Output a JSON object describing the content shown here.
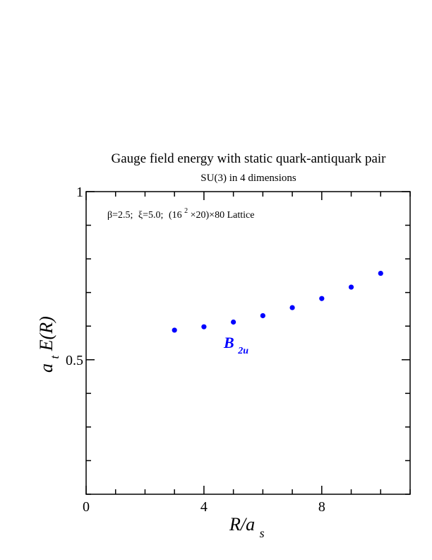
{
  "chart_data": {
    "type": "scatter",
    "title": "Gauge field energy with static quark-antiquark pair",
    "subtitle": "SU(3) in 4 dimensions",
    "annotation": {
      "beta": "β=2.5;",
      "xi": "ξ=5.0;",
      "lattice_a": "(16",
      "lattice_exp": "2",
      "lattice_b": "×20)×80 Lattice"
    },
    "series": [
      {
        "name_main": "B",
        "name_sub": "2u",
        "color": "#0000ff",
        "x": [
          3,
          4,
          5,
          6,
          7,
          8,
          9,
          10
        ],
        "y": [
          0.588,
          0.598,
          0.612,
          0.631,
          0.655,
          0.682,
          0.716,
          0.757
        ]
      }
    ],
    "xlabel": {
      "main": "R/a",
      "sub": "s"
    },
    "ylabel": {
      "a": "a",
      "a_sub": "t",
      "rest": "E(R)"
    },
    "xlim": [
      0,
      11
    ],
    "ylim": [
      0.1,
      1.0
    ],
    "xticks": [
      {
        "v": 0,
        "label": "0"
      },
      {
        "v": 4,
        "label": "4"
      },
      {
        "v": 8,
        "label": "8"
      }
    ],
    "yticks": [
      {
        "v": 0.5,
        "label": "0.5"
      },
      {
        "v": 1.0,
        "label": "1"
      }
    ],
    "x_minor_step": 1,
    "y_minor_step": 0.1,
    "grid": false,
    "legend": "none"
  }
}
